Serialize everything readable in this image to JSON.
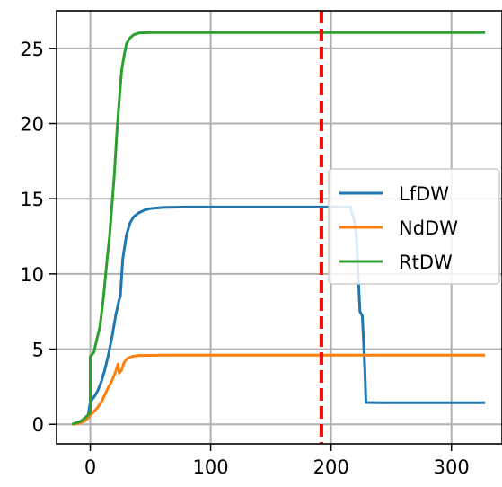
{
  "chart_data": {
    "type": "line",
    "title": "",
    "xlabel": "",
    "ylabel": "",
    "xlim": [
      -28,
      342
    ],
    "ylim": [
      -1.3,
      27.5
    ],
    "x_ticks": [
      0,
      100,
      200,
      300
    ],
    "y_ticks": [
      0,
      5,
      10,
      15,
      20,
      25
    ],
    "x_tick_labels": [
      "0",
      "100",
      "200",
      "300"
    ],
    "y_tick_labels": [
      "0",
      "5",
      "10",
      "15",
      "20",
      "25"
    ],
    "grid": true,
    "legend_placement": "right",
    "vertical_line": {
      "x": 192,
      "color": "#ff0000",
      "style": "dashed"
    },
    "series": [
      {
        "name": "LfDW",
        "color": "#1f77b4",
        "points": [
          [
            -15,
            0
          ],
          [
            -10,
            0.1
          ],
          [
            -5,
            0.3
          ],
          [
            -2,
            0.5
          ],
          [
            0,
            1.5
          ],
          [
            3,
            1.8
          ],
          [
            6,
            2.2
          ],
          [
            9,
            2.8
          ],
          [
            12,
            3.6
          ],
          [
            15,
            4.6
          ],
          [
            18,
            5.8
          ],
          [
            21,
            7.2
          ],
          [
            24,
            8.3
          ],
          [
            25,
            8.5
          ],
          [
            27,
            11
          ],
          [
            30,
            12.6
          ],
          [
            33,
            13.4
          ],
          [
            36,
            13.8
          ],
          [
            40,
            14.05
          ],
          [
            45,
            14.25
          ],
          [
            50,
            14.35
          ],
          [
            60,
            14.42
          ],
          [
            80,
            14.45
          ],
          [
            150,
            14.45
          ],
          [
            216,
            14.45
          ],
          [
            219,
            13.6
          ],
          [
            221,
            12.6
          ],
          [
            224,
            7.5
          ],
          [
            226,
            7.2
          ],
          [
            228,
            3.8
          ],
          [
            229,
            1.45
          ],
          [
            240,
            1.43
          ],
          [
            328,
            1.43
          ]
        ]
      },
      {
        "name": "NdDW",
        "color": "#ff7f0e",
        "points": [
          [
            -15,
            0
          ],
          [
            -10,
            0.05
          ],
          [
            -5,
            0.2
          ],
          [
            -2,
            0.4
          ],
          [
            0,
            0.6
          ],
          [
            3,
            0.85
          ],
          [
            6,
            1.1
          ],
          [
            10,
            1.6
          ],
          [
            14,
            2.3
          ],
          [
            18,
            2.9
          ],
          [
            21,
            3.5
          ],
          [
            23,
            4.0
          ],
          [
            24,
            3.4
          ],
          [
            26,
            3.6
          ],
          [
            28,
            4.1
          ],
          [
            31,
            4.4
          ],
          [
            35,
            4.52
          ],
          [
            40,
            4.58
          ],
          [
            60,
            4.6
          ],
          [
            328,
            4.6
          ]
        ]
      },
      {
        "name": "RtDW",
        "color": "#2ca02c",
        "points": [
          [
            -15,
            0
          ],
          [
            -8,
            0.2
          ],
          [
            -2,
            0.6
          ],
          [
            0,
            0.8
          ],
          [
            0,
            4.5
          ],
          [
            3,
            4.8
          ],
          [
            5,
            5.5
          ],
          [
            8,
            6.5
          ],
          [
            11,
            8.5
          ],
          [
            14,
            11.0
          ],
          [
            16,
            12.5
          ],
          [
            18,
            14.6
          ],
          [
            20,
            16.6
          ],
          [
            22,
            19.3
          ],
          [
            24,
            21.5
          ],
          [
            26,
            23.5
          ],
          [
            28,
            24.5
          ],
          [
            30,
            25.3
          ],
          [
            33,
            25.7
          ],
          [
            36,
            25.9
          ],
          [
            40,
            26.02
          ],
          [
            50,
            26.05
          ],
          [
            328,
            26.05
          ]
        ]
      }
    ]
  }
}
